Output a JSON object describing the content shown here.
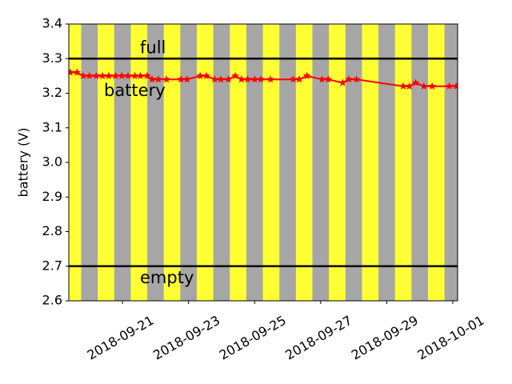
{
  "chart_data": {
    "type": "line",
    "ylabel": "battery (V)",
    "x": [
      "2018-09-19T10:00",
      "2018-09-19T15:00",
      "2018-09-19T19:30",
      "2018-09-20T00:00",
      "2018-09-20T05:00",
      "2018-09-20T09:30",
      "2018-09-20T14:00",
      "2018-09-20T19:00",
      "2018-09-20T23:30",
      "2018-09-21T04:00",
      "2018-09-21T09:00",
      "2018-09-21T13:00",
      "2018-09-21T18:00",
      "2018-09-21T21:30",
      "2018-09-22T02:00",
      "2018-09-22T08:00",
      "2018-09-22T18:30",
      "2018-09-22T23:00",
      "2018-09-23T08:30",
      "2018-09-23T13:00",
      "2018-09-23T19:00",
      "2018-09-23T23:30",
      "2018-09-24T05:00",
      "2018-09-24T10:00",
      "2018-09-24T14:30",
      "2018-09-24T19:00",
      "2018-09-25T00:00",
      "2018-09-25T04:30",
      "2018-09-25T11:30",
      "2018-09-26T04:00",
      "2018-09-26T08:30",
      "2018-09-26T14:00",
      "2018-09-27T01:00",
      "2018-09-27T05:30",
      "2018-09-27T16:00",
      "2018-09-27T20:30",
      "2018-09-28T02:00",
      "2018-09-29T12:00",
      "2018-09-29T16:30",
      "2018-09-29T21:00",
      "2018-09-30T03:00",
      "2018-09-30T09:00",
      "2018-09-30T21:30",
      "2018-10-01T02:30"
    ],
    "series": [
      {
        "name": "battery",
        "color": "#ff0000",
        "values": [
          3.26,
          3.26,
          3.25,
          3.25,
          3.25,
          3.25,
          3.25,
          3.25,
          3.25,
          3.25,
          3.25,
          3.25,
          3.25,
          3.24,
          3.24,
          3.24,
          3.24,
          3.24,
          3.25,
          3.25,
          3.24,
          3.24,
          3.24,
          3.25,
          3.24,
          3.24,
          3.24,
          3.24,
          3.24,
          3.24,
          3.24,
          3.25,
          3.24,
          3.24,
          3.23,
          3.24,
          3.24,
          3.22,
          3.22,
          3.23,
          3.22,
          3.22,
          3.22,
          3.22
        ]
      }
    ],
    "hlines": [
      {
        "value": 3.3,
        "label": "full",
        "color": "#000000"
      },
      {
        "value": 2.7,
        "label": "empty",
        "color": "#000000"
      }
    ],
    "background_color": "#ffff33",
    "night_color": "#a6a6a6",
    "night_spans": [
      [
        "2018-09-19T18:00",
        "2018-09-20T06:00"
      ],
      [
        "2018-09-20T18:00",
        "2018-09-21T06:00"
      ],
      [
        "2018-09-21T18:00",
        "2018-09-22T06:00"
      ],
      [
        "2018-09-22T18:00",
        "2018-09-23T06:00"
      ],
      [
        "2018-09-23T18:00",
        "2018-09-24T06:00"
      ],
      [
        "2018-09-24T18:00",
        "2018-09-25T06:00"
      ],
      [
        "2018-09-25T18:00",
        "2018-09-26T06:00"
      ],
      [
        "2018-09-26T18:00",
        "2018-09-27T06:00"
      ],
      [
        "2018-09-27T18:00",
        "2018-09-28T06:00"
      ],
      [
        "2018-09-28T18:00",
        "2018-09-29T06:00"
      ],
      [
        "2018-09-29T18:00",
        "2018-09-30T06:00"
      ],
      [
        "2018-09-30T18:00",
        "2018-10-01T06:00"
      ]
    ],
    "xlim": [
      "2018-09-19T09:00",
      "2018-10-01T03:30"
    ],
    "xticks": [
      "2018-09-21",
      "2018-09-23",
      "2018-09-25",
      "2018-09-27",
      "2018-09-29",
      "2018-10-01"
    ],
    "ylim": [
      2.6,
      3.4
    ],
    "yticks": [
      2.6,
      2.7,
      2.8,
      2.9,
      {
        "value": 3.0,
        "label": "3.0"
      },
      3.1,
      3.2,
      3.3,
      3.4
    ]
  }
}
